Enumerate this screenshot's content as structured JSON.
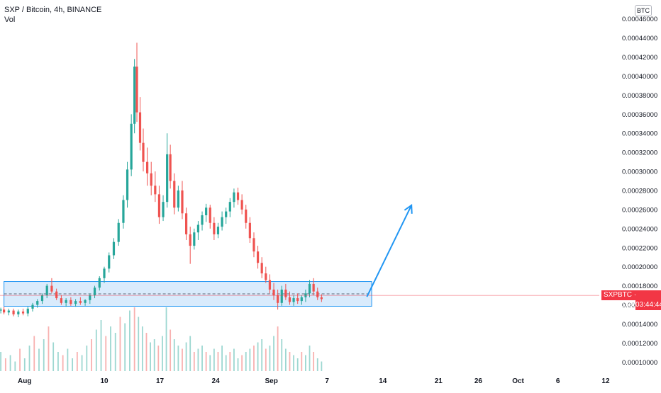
{
  "header": {
    "symbol_line": "SXP / Bitcoin, 4h, BINANCE",
    "indicator": "Vol"
  },
  "currency_badge": "BTC",
  "last_price_label": "SXPBTC · 0.00016988",
  "countdown": "03:44:44",
  "colors": {
    "up": "#26a69a",
    "down": "#ef5350",
    "zone_fill": "#cfe6fb",
    "zone_stroke": "#2196f3",
    "arrow": "#2196f3",
    "price_line": "#f23645"
  },
  "chart_data": {
    "type": "candlestick",
    "y_axis": {
      "ticks": [
        "0.00010000",
        "0.00012000",
        "0.00014000",
        "0.00016000",
        "0.00018000",
        "0.00020000",
        "0.00022000",
        "0.00024000",
        "0.00026000",
        "0.00028000",
        "0.00030000",
        "0.00032000",
        "0.00034000",
        "0.00036000",
        "0.00038000",
        "0.00040000",
        "0.00042000",
        "0.00044000",
        "0.00046000"
      ],
      "range": [
        9.35e-05,
        0.0004665
      ]
    },
    "x_axis": {
      "ticks": [
        "Aug",
        "10",
        "17",
        "24",
        "Sep",
        "7",
        "14",
        "21",
        "26",
        "Oct",
        "6",
        "12"
      ],
      "range_days": [
        -3.1,
        72.2
      ]
    },
    "last_price": 0.00016988,
    "support_zone": {
      "low": 0.0001585,
      "high": 0.0001845
    },
    "projection": {
      "from": {
        "day": 43.0,
        "price": 0.0001685
      },
      "to": {
        "day": 48.6,
        "price": 0.0002645
      }
    },
    "candles": [
      [
        -3.0,
        0.000154,
        0.000157,
        0.000151,
        0.000155
      ],
      [
        -2.6,
        0.000155,
        0.000158,
        0.00015,
        0.000152
      ],
      [
        -2.0,
        0.000152,
        0.000156,
        0.000149,
        0.000154
      ],
      [
        -1.4,
        0.000154,
        0.000156,
        0.000148,
        0.00015
      ],
      [
        -0.8,
        0.00015,
        0.000155,
        0.000147,
        0.000153
      ],
      [
        -0.2,
        0.000153,
        0.000156,
        0.000149,
        0.000151
      ],
      [
        0.4,
        0.000151,
        0.000158,
        0.000148,
        0.000156
      ],
      [
        1.0,
        0.000156,
        0.000162,
        0.000153,
        0.00016
      ],
      [
        1.6,
        0.00016,
        0.000166,
        0.000157,
        0.000164
      ],
      [
        2.2,
        0.000164,
        0.000172,
        0.000161,
        0.00017
      ],
      [
        2.8,
        0.00017,
        0.000182,
        0.000167,
        0.00018
      ],
      [
        3.4,
        0.00018,
        0.000188,
        0.000172,
        0.000174
      ],
      [
        4.0,
        0.000174,
        0.000177,
        0.000165,
        0.000167
      ],
      [
        4.6,
        0.000167,
        0.00017,
        0.00016,
        0.000162
      ],
      [
        5.2,
        0.000162,
        0.000167,
        0.000158,
        0.000165
      ],
      [
        5.8,
        0.000165,
        0.000168,
        0.000159,
        0.000161
      ],
      [
        6.4,
        0.000161,
        0.000166,
        0.000158,
        0.000164
      ],
      [
        7.0,
        0.000164,
        0.000168,
        0.00016,
        0.000162
      ],
      [
        7.6,
        0.000162,
        0.000166,
        0.000159,
        0.000165
      ],
      [
        8.2,
        0.000165,
        0.000172,
        0.000161,
        0.00017
      ],
      [
        8.8,
        0.00017,
        0.00018,
        0.000167,
        0.000178
      ],
      [
        9.4,
        0.000178,
        0.00019,
        0.000175,
        0.000188
      ],
      [
        10.0,
        0.000188,
        0.0002,
        0.000183,
        0.000198
      ],
      [
        10.6,
        0.000198,
        0.000215,
        0.000194,
        0.000212
      ],
      [
        11.2,
        0.000212,
        0.00023,
        0.000208,
        0.000226
      ],
      [
        11.8,
        0.000226,
        0.00025,
        0.000222,
        0.000246
      ],
      [
        12.4,
        0.000246,
        0.000275,
        0.00024,
        0.00027
      ],
      [
        12.9,
        0.00027,
        0.00031,
        0.000262,
        0.000302
      ],
      [
        13.4,
        0.000302,
        0.00036,
        0.000295,
        0.00035
      ],
      [
        13.8,
        0.00035,
        0.000418,
        0.00034,
        0.00041
      ],
      [
        14.1,
        0.00041,
        0.000435,
        0.000352,
        0.000362
      ],
      [
        14.5,
        0.000362,
        0.000378,
        0.000322,
        0.00033
      ],
      [
        14.9,
        0.00033,
        0.000345,
        0.0003,
        0.00031
      ],
      [
        15.4,
        0.00031,
        0.000325,
        0.000285,
        0.000298
      ],
      [
        15.9,
        0.000298,
        0.00031,
        0.000275,
        0.000285
      ],
      [
        16.4,
        0.000285,
        0.0003,
        0.000268,
        0.000276
      ],
      [
        16.9,
        0.000276,
        0.000285,
        0.000245,
        0.000252
      ],
      [
        17.4,
        0.000252,
        0.000275,
        0.000248,
        0.000268
      ],
      [
        17.9,
        0.000268,
        0.00034,
        0.000262,
        0.000318
      ],
      [
        18.3,
        0.000318,
        0.000328,
        0.000282,
        0.00029
      ],
      [
        18.8,
        0.00029,
        0.000298,
        0.000255,
        0.000262
      ],
      [
        19.3,
        0.000262,
        0.000285,
        0.000258,
        0.00028
      ],
      [
        19.8,
        0.00028,
        0.00029,
        0.00025,
        0.000256
      ],
      [
        20.3,
        0.000256,
        0.000262,
        0.000228,
        0.000234
      ],
      [
        20.8,
        0.000234,
        0.000242,
        0.000203,
        0.000222
      ],
      [
        21.3,
        0.000222,
        0.00024,
        0.000218,
        0.000236
      ],
      [
        21.8,
        0.000236,
        0.000248,
        0.000228,
        0.000244
      ],
      [
        22.3,
        0.000244,
        0.000258,
        0.000238,
        0.000254
      ],
      [
        22.8,
        0.000254,
        0.000266,
        0.000247,
        0.000262
      ],
      [
        23.3,
        0.000262,
        0.000265,
        0.00024,
        0.000246
      ],
      [
        23.8,
        0.000246,
        0.000252,
        0.000228,
        0.000234
      ],
      [
        24.3,
        0.000234,
        0.000246,
        0.00023,
        0.000242
      ],
      [
        24.8,
        0.000242,
        0.000258,
        0.000238,
        0.000252
      ],
      [
        25.3,
        0.000252,
        0.000262,
        0.000245,
        0.000258
      ],
      [
        25.8,
        0.000258,
        0.000272,
        0.000252,
        0.000268
      ],
      [
        26.3,
        0.000268,
        0.000282,
        0.000262,
        0.000278
      ],
      [
        26.8,
        0.000278,
        0.000283,
        0.000265,
        0.00027
      ],
      [
        27.3,
        0.00027,
        0.000276,
        0.000255,
        0.00026
      ],
      [
        27.8,
        0.00026,
        0.000265,
        0.00024,
        0.000246
      ],
      [
        28.3,
        0.000246,
        0.000252,
        0.000225,
        0.00023
      ],
      [
        28.8,
        0.00023,
        0.000236,
        0.00021,
        0.000216
      ],
      [
        29.3,
        0.000216,
        0.000222,
        0.000198,
        0.000204
      ],
      [
        29.8,
        0.000204,
        0.00021,
        0.000188,
        0.000193
      ],
      [
        30.3,
        0.000193,
        0.0002,
        0.000183,
        0.000186
      ],
      [
        30.8,
        0.000186,
        0.000192,
        0.000172,
        0.000176
      ],
      [
        31.3,
        0.000176,
        0.000183,
        0.000165,
        0.00017
      ],
      [
        31.8,
        0.00017,
        0.000176,
        0.000155,
        0.000162
      ],
      [
        32.3,
        0.000162,
        0.00018,
        0.000159,
        0.000176
      ],
      [
        32.8,
        0.000176,
        0.000182,
        0.000165,
        0.000168
      ],
      [
        33.3,
        0.000168,
        0.000174,
        0.00016,
        0.000163
      ],
      [
        33.8,
        0.000163,
        0.00017,
        0.000159,
        0.000167
      ],
      [
        34.3,
        0.000167,
        0.000172,
        0.000161,
        0.000164
      ],
      [
        34.8,
        0.000164,
        0.00017,
        0.00016,
        0.000168
      ],
      [
        35.3,
        0.000168,
        0.000176,
        0.000163,
        0.000172
      ],
      [
        35.8,
        0.000172,
        0.000186,
        0.000168,
        0.000182
      ],
      [
        36.3,
        0.000182,
        0.000188,
        0.00017,
        0.000174
      ],
      [
        36.8,
        0.000174,
        0.000178,
        0.000165,
        0.000168
      ],
      [
        37.3,
        0.000168,
        0.000171,
        0.000163,
        0.000166
      ]
    ],
    "volumes": [
      [
        -3.0,
        0.3
      ],
      [
        -2.4,
        0.2
      ],
      [
        -1.8,
        0.25
      ],
      [
        -1.2,
        0.15
      ],
      [
        -0.6,
        0.35
      ],
      [
        0.0,
        0.2
      ],
      [
        0.6,
        0.4
      ],
      [
        1.2,
        0.55
      ],
      [
        1.8,
        0.35
      ],
      [
        2.4,
        0.5
      ],
      [
        3.0,
        0.7
      ],
      [
        3.6,
        0.45
      ],
      [
        4.2,
        0.3
      ],
      [
        4.8,
        0.25
      ],
      [
        5.4,
        0.35
      ],
      [
        6.0,
        0.2
      ],
      [
        6.6,
        0.3
      ],
      [
        7.2,
        0.25
      ],
      [
        7.8,
        0.4
      ],
      [
        8.4,
        0.5
      ],
      [
        9.0,
        0.65
      ],
      [
        9.6,
        0.8
      ],
      [
        10.2,
        0.55
      ],
      [
        10.8,
        0.7
      ],
      [
        11.4,
        0.6
      ],
      [
        12.0,
        0.85
      ],
      [
        12.6,
        0.75
      ],
      [
        13.2,
        0.95
      ],
      [
        13.8,
        1.0
      ],
      [
        14.3,
        0.85
      ],
      [
        14.8,
        0.7
      ],
      [
        15.3,
        0.6
      ],
      [
        15.8,
        0.45
      ],
      [
        16.3,
        0.5
      ],
      [
        16.8,
        0.4
      ],
      [
        17.3,
        0.55
      ],
      [
        17.8,
        1.0
      ],
      [
        18.3,
        0.65
      ],
      [
        18.8,
        0.5
      ],
      [
        19.3,
        0.4
      ],
      [
        19.8,
        0.35
      ],
      [
        20.3,
        0.45
      ],
      [
        20.8,
        0.55
      ],
      [
        21.3,
        0.3
      ],
      [
        21.8,
        0.35
      ],
      [
        22.3,
        0.4
      ],
      [
        22.8,
        0.3
      ],
      [
        23.3,
        0.25
      ],
      [
        23.8,
        0.35
      ],
      [
        24.3,
        0.3
      ],
      [
        24.8,
        0.4
      ],
      [
        25.3,
        0.25
      ],
      [
        25.8,
        0.3
      ],
      [
        26.3,
        0.35
      ],
      [
        26.8,
        0.2
      ],
      [
        27.3,
        0.25
      ],
      [
        27.8,
        0.3
      ],
      [
        28.3,
        0.35
      ],
      [
        28.8,
        0.4
      ],
      [
        29.3,
        0.45
      ],
      [
        29.8,
        0.5
      ],
      [
        30.3,
        0.35
      ],
      [
        30.8,
        0.4
      ],
      [
        31.3,
        0.55
      ],
      [
        31.8,
        0.7
      ],
      [
        32.3,
        0.5
      ],
      [
        32.8,
        0.35
      ],
      [
        33.3,
        0.3
      ],
      [
        33.8,
        0.25
      ],
      [
        34.3,
        0.2
      ],
      [
        34.8,
        0.3
      ],
      [
        35.3,
        0.25
      ],
      [
        35.8,
        0.4
      ],
      [
        36.3,
        0.3
      ],
      [
        36.8,
        0.2
      ],
      [
        37.3,
        0.15
      ]
    ]
  }
}
